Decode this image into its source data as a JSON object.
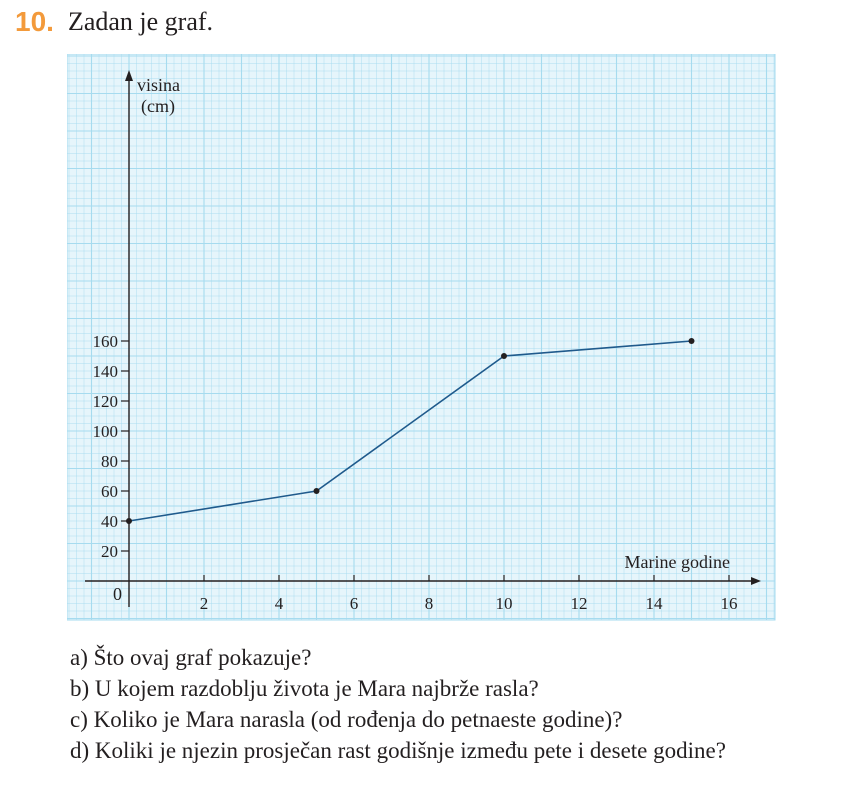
{
  "task": {
    "number": "10.",
    "title": "Zadan je graf."
  },
  "chart_data": {
    "type": "line",
    "title": "",
    "ylabel_lines": [
      "visina",
      "(cm)"
    ],
    "xlabel": "Marine godine",
    "origin_label": "0",
    "x": [
      0,
      5,
      10,
      15
    ],
    "y": [
      40,
      60,
      150,
      160
    ],
    "xlim": [
      0,
      16
    ],
    "ylim": [
      0,
      160
    ],
    "x_ticks": [
      2,
      4,
      6,
      8,
      10,
      12,
      14,
      16
    ],
    "y_ticks": [
      20,
      40,
      60,
      80,
      100,
      120,
      140,
      160
    ],
    "grid": true,
    "line_color": "#1f5a8c",
    "grid_color": "#a6dbef",
    "background_color": "#e6f5fb"
  },
  "questions": [
    "a) Što ovaj graf pokazuje?",
    "b) U kojem razdoblju života je Mara najbrže rasla?",
    "c) Koliko je Mara narasla (od rođenja do petnaeste godine)?",
    "d) Koliki je njezin prosječan rast godišnje između pete i desete godine?"
  ]
}
